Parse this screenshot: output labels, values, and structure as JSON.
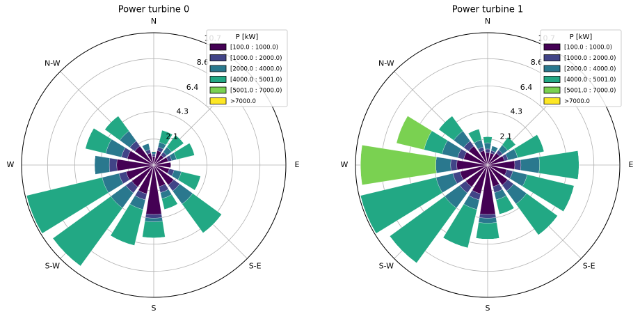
{
  "chart_data": [
    {
      "type": "windrose",
      "title": "Power turbine 0",
      "legend_title": "P [kW]",
      "legend": "upper right",
      "grid": true,
      "categories": [
        "N",
        "NNE",
        "NE",
        "ENE",
        "E",
        "ESE",
        "SE",
        "SSE",
        "S",
        "SSW",
        "SW",
        "WSW",
        "W",
        "WNW",
        "NW",
        "NNW"
      ],
      "xticks": [
        {
          "value": 0,
          "label": "N"
        },
        {
          "value": 90,
          "label": "E"
        },
        {
          "value": 135,
          "label": "S-E"
        },
        {
          "value": 180,
          "label": "S"
        },
        {
          "value": 225,
          "label": "S-W"
        },
        {
          "value": 270,
          "label": "W"
        },
        {
          "value": 315,
          "label": "N-W"
        }
      ],
      "ylim": [
        0,
        10.7
      ],
      "yticks": [
        2.1,
        4.3,
        6.4,
        8.6,
        10.7
      ],
      "series": [
        {
          "name": "[100.0 : 1000.0)",
          "color": "#440154",
          "values": [
            0.7,
            1.2,
            1.0,
            1.2,
            1.4,
            1.3,
            2.0,
            1.8,
            4.0,
            2.4,
            2.2,
            2.3,
            3.0,
            2.2,
            1.9,
            1.0
          ]
        },
        {
          "name": "[1000.0 : 2000.0)",
          "color": "#414487",
          "values": [
            0.2,
            0.3,
            0.3,
            0.3,
            0,
            0.4,
            0.6,
            0.5,
            0.3,
            0.5,
            0.6,
            0.6,
            0.6,
            0.5,
            0.5,
            0.3
          ]
        },
        {
          "name": "[2000.0 : 4000.0)",
          "color": "#2a788e",
          "values": [
            0.2,
            0.4,
            0.5,
            0.4,
            0,
            0.6,
            1.3,
            0.5,
            0.3,
            0.8,
            1.5,
            1.4,
            1.2,
            1.3,
            1.0,
            0.5
          ]
        },
        {
          "name": "[4000.0 : 5001.0)",
          "color": "#22a884",
          "values": [
            0,
            1.0,
            1.2,
            1.5,
            0,
            1.6,
            2.9,
            0.9,
            1.3,
            3.0,
            5.8,
            6.3,
            0,
            1.7,
            1.5,
            0
          ]
        },
        {
          "name": "[5001.0 : 7000.0)",
          "color": "#7ad151",
          "values": [
            0,
            0,
            0,
            0,
            0,
            0,
            0,
            0,
            0,
            0,
            0,
            0,
            0,
            0,
            0,
            0
          ]
        },
        {
          "name": ">7000.0",
          "color": "#fde725",
          "values": [
            0,
            0,
            0,
            0,
            0,
            0,
            0,
            0,
            0,
            0,
            0,
            0,
            0,
            0,
            0,
            0
          ]
        }
      ]
    },
    {
      "type": "windrose",
      "title": "Power turbine 1",
      "legend_title": "P [kW]",
      "legend": "upper right",
      "grid": true,
      "categories": [
        "N",
        "NNE",
        "NE",
        "ENE",
        "E",
        "ESE",
        "SE",
        "SSE",
        "S",
        "SSW",
        "SW",
        "WSW",
        "W",
        "WNW",
        "NW",
        "NNW"
      ],
      "xticks": [
        {
          "value": 0,
          "label": "N"
        },
        {
          "value": 90,
          "label": "E"
        },
        {
          "value": 135,
          "label": "S-E"
        },
        {
          "value": 180,
          "label": "S"
        },
        {
          "value": 225,
          "label": "S-W"
        },
        {
          "value": 270,
          "label": "W"
        },
        {
          "value": 315,
          "label": "N-W"
        }
      ],
      "ylim": [
        0,
        10.7
      ],
      "yticks": [
        2.1,
        4.3,
        6.4,
        8.6,
        10.7
      ],
      "series": [
        {
          "name": "[100.0 : 1000.0)",
          "color": "#440154",
          "values": [
            1.0,
            1.0,
            1.2,
            1.4,
            2.2,
            1.6,
            2.0,
            1.8,
            4.0,
            2.4,
            2.2,
            2.3,
            2.5,
            2.0,
            1.9,
            1.2
          ]
        },
        {
          "name": "[1000.0 : 2000.0)",
          "color": "#414487",
          "values": [
            0.3,
            0.2,
            0.3,
            0.3,
            0.5,
            0.5,
            0.6,
            0.5,
            0.3,
            0.5,
            0.6,
            0.6,
            0.5,
            0.5,
            0.5,
            0.3
          ]
        },
        {
          "name": "[2000.0 : 4000.0)",
          "color": "#2a788e",
          "values": [
            0.5,
            0.4,
            0.5,
            0.8,
            1.5,
            1.2,
            1.3,
            0.6,
            0.4,
            0.8,
            1.5,
            1.4,
            1.2,
            1.3,
            1.0,
            0.6
          ]
        },
        {
          "name": "[4000.0 : 5001.0)",
          "color": "#22a884",
          "values": [
            0.5,
            0,
            0.8,
            2.2,
            3.2,
            3.9,
            3.1,
            1.2,
            1.3,
            3.2,
            5.5,
            6.3,
            0,
            1.5,
            1.5,
            0.9
          ]
        },
        {
          "name": "[5001.0 : 7000.0)",
          "color": "#7ad151",
          "values": [
            0,
            0,
            0,
            0,
            0,
            0,
            0,
            0,
            0,
            0,
            0,
            0,
            6.1,
            2.3,
            0,
            0
          ]
        },
        {
          "name": ">7000.0",
          "color": "#fde725",
          "values": [
            0,
            0,
            0,
            0,
            0,
            0,
            0,
            0,
            0,
            0,
            0,
            0,
            0,
            0,
            0,
            0
          ]
        }
      ]
    }
  ]
}
